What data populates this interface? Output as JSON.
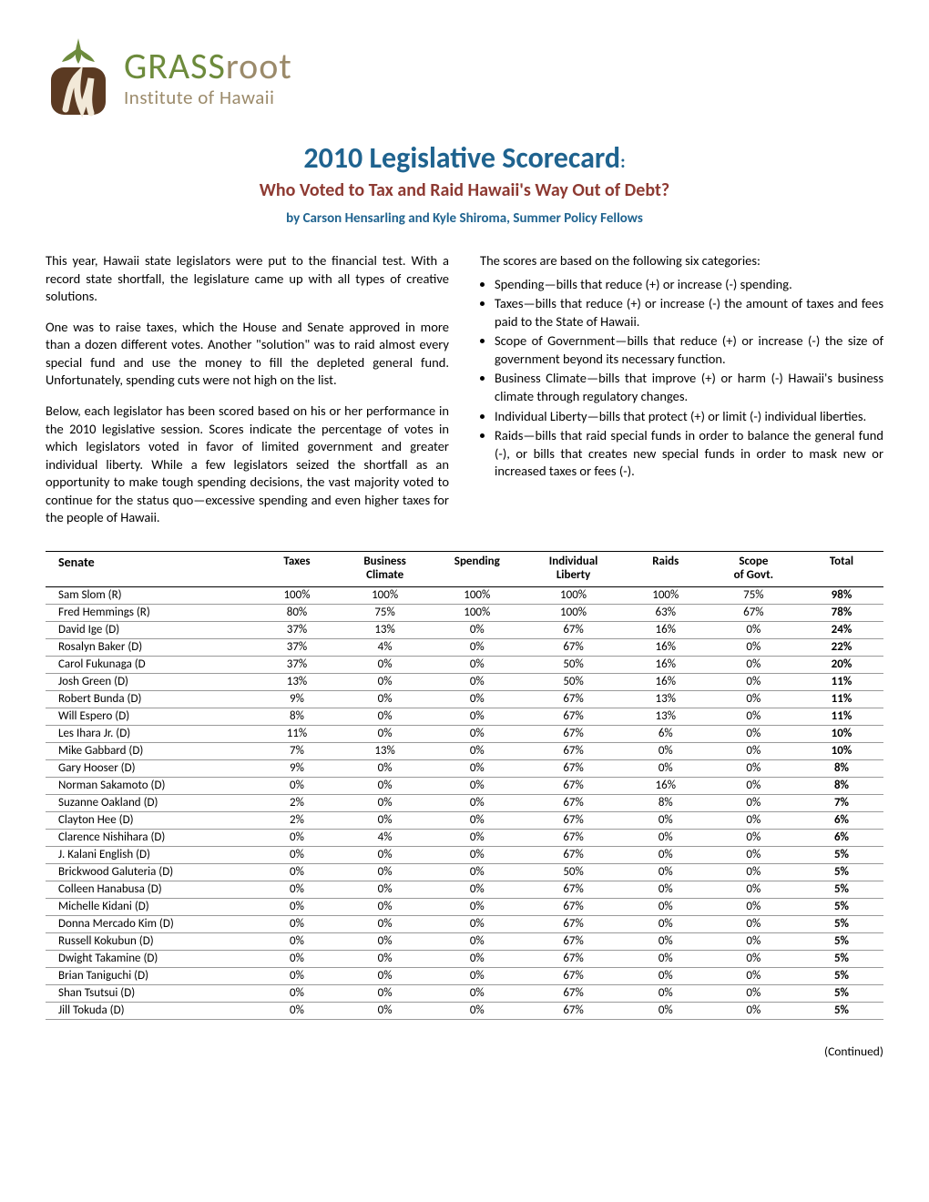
{
  "logo": {
    "line1_a": "GRASS",
    "line1_b": "root",
    "line2": "Institute of Hawaii"
  },
  "header": {
    "title": "2010 Legislative Scorecard",
    "colon": ":",
    "subtitle": "Who Voted to Tax and Raid Hawaii's Way Out of Debt?",
    "byline": "by Carson Hensarling and Kyle Shiroma, Summer Policy Fellows"
  },
  "body": {
    "p1": "This year, Hawaii state legislators were put to the financial test. With a record state shortfall, the legislature came up with all types of creative solutions.",
    "p2": "One was to raise taxes, which the House and Senate approved in more than a dozen different votes. Another \"solution\" was to raid almost every special fund and use the money to fill the depleted general fund. Unfortunately, spending cuts were not high on the list.",
    "p3": "Below, each legislator has been scored based on his or her performance in the 2010 legislative session. Scores indicate the percentage of votes in which legislators voted in favor of limited government and greater individual liberty. While a few legislators seized the shortfall as an opportunity to make tough spending decisions, the vast majority voted to continue for the status quo—excessive spending and even higher taxes for the people of Hawaii.",
    "cats_intro": "The scores are based on the following six categories:",
    "cats": [
      "Spending—bills that reduce (+) or increase (-) spending.",
      "Taxes—bills that reduce (+) or increase (-) the amount of taxes and fees paid to the State of Hawaii.",
      "Scope of Government—bills that reduce (+) or increase (-) the size of government beyond its necessary function.",
      "Business Climate—bills that improve (+) or harm (-) Hawaii's business climate through regulatory changes.",
      "Individual Liberty—bills that protect (+) or limit (-) individual liberties.",
      "Raids—bills that raid special funds in order to balance the general fund (-), or bills that creates new special funds in order to mask new or increased taxes or fees (-)."
    ]
  },
  "table": {
    "headers": {
      "c0": "Senate",
      "c1": "Taxes",
      "c2": "Business Climate",
      "c3": "Spending",
      "c4": "Individual Liberty",
      "c5": "Raids",
      "c6": "Scope of Govt.",
      "c7": "Total"
    },
    "rows": [
      {
        "name": "Sam Slom (R)",
        "taxes": "100%",
        "biz": "100%",
        "spend": "100%",
        "lib": "100%",
        "raids": "100%",
        "scope": "75%",
        "total": "98%"
      },
      {
        "name": "Fred Hemmings (R)",
        "taxes": "80%",
        "biz": "75%",
        "spend": "100%",
        "lib": "100%",
        "raids": "63%",
        "scope": "67%",
        "total": "78%"
      },
      {
        "name": "David Ige  (D)",
        "taxes": "37%",
        "biz": "13%",
        "spend": "0%",
        "lib": "67%",
        "raids": "16%",
        "scope": "0%",
        "total": "24%"
      },
      {
        "name": "Rosalyn Baker (D)",
        "taxes": "37%",
        "biz": "4%",
        "spend": "0%",
        "lib": "67%",
        "raids": "16%",
        "scope": "0%",
        "total": "22%"
      },
      {
        "name": "Carol Fukunaga (D",
        "taxes": "37%",
        "biz": "0%",
        "spend": "0%",
        "lib": "50%",
        "raids": "16%",
        "scope": "0%",
        "total": "20%"
      },
      {
        "name": "Josh Green  (D)",
        "taxes": "13%",
        "biz": "0%",
        "spend": "0%",
        "lib": "50%",
        "raids": "16%",
        "scope": "0%",
        "total": "11%"
      },
      {
        "name": "Robert Bunda   (D)",
        "taxes": "9%",
        "biz": "0%",
        "spend": "0%",
        "lib": "67%",
        "raids": "13%",
        "scope": "0%",
        "total": "11%"
      },
      {
        "name": "Will Espero  (D)",
        "taxes": "8%",
        "biz": "0%",
        "spend": "0%",
        "lib": "67%",
        "raids": "13%",
        "scope": "0%",
        "total": "11%"
      },
      {
        "name": "Les Ihara Jr.  (D)",
        "taxes": "11%",
        "biz": "0%",
        "spend": "0%",
        "lib": "67%",
        "raids": "6%",
        "scope": "0%",
        "total": "10%"
      },
      {
        "name": "Mike Gabbard  (D)",
        "taxes": "7%",
        "biz": "13%",
        "spend": "0%",
        "lib": "67%",
        "raids": "0%",
        "scope": "0%",
        "total": "10%"
      },
      {
        "name": "Gary Hooser  (D)",
        "taxes": "9%",
        "biz": "0%",
        "spend": "0%",
        "lib": "67%",
        "raids": "0%",
        "scope": "0%",
        "total": "8%"
      },
      {
        "name": "Norman Sakamoto (D)",
        "taxes": "0%",
        "biz": "0%",
        "spend": "0%",
        "lib": "67%",
        "raids": "16%",
        "scope": "0%",
        "total": "8%"
      },
      {
        "name": "Suzanne Oakland  (D)",
        "taxes": "2%",
        "biz": "0%",
        "spend": "0%",
        "lib": "67%",
        "raids": "8%",
        "scope": "0%",
        "total": "7%"
      },
      {
        "name": "Clayton Hee  (D)",
        "taxes": "2%",
        "biz": "0%",
        "spend": "0%",
        "lib": "67%",
        "raids": "0%",
        "scope": "0%",
        "total": "6%"
      },
      {
        "name": "Clarence Nishihara  (D)",
        "taxes": "0%",
        "biz": "4%",
        "spend": "0%",
        "lib": "67%",
        "raids": "0%",
        "scope": "0%",
        "total": "6%"
      },
      {
        "name": "J. Kalani English  (D)",
        "taxes": "0%",
        "biz": "0%",
        "spend": "0%",
        "lib": "67%",
        "raids": "0%",
        "scope": "0%",
        "total": "5%"
      },
      {
        "name": "Brickwood Galuteria  (D)",
        "taxes": "0%",
        "biz": "0%",
        "spend": "0%",
        "lib": "50%",
        "raids": "0%",
        "scope": "0%",
        "total": "5%"
      },
      {
        "name": "Colleen Hanabusa  (D)",
        "taxes": "0%",
        "biz": "0%",
        "spend": "0%",
        "lib": "67%",
        "raids": "0%",
        "scope": "0%",
        "total": "5%"
      },
      {
        "name": "Michelle Kidani  (D)",
        "taxes": "0%",
        "biz": "0%",
        "spend": "0%",
        "lib": "67%",
        "raids": "0%",
        "scope": "0%",
        "total": "5%"
      },
      {
        "name": "Donna Mercado Kim  (D)",
        "taxes": "0%",
        "biz": "0%",
        "spend": "0%",
        "lib": "67%",
        "raids": "0%",
        "scope": "0%",
        "total": "5%"
      },
      {
        "name": "Russell Kokubun  (D)",
        "taxes": "0%",
        "biz": "0%",
        "spend": "0%",
        "lib": "67%",
        "raids": "0%",
        "scope": "0%",
        "total": "5%"
      },
      {
        "name": "Dwight Takamine (D)",
        "taxes": "0%",
        "biz": "0%",
        "spend": "0%",
        "lib": "67%",
        "raids": "0%",
        "scope": "0%",
        "total": "5%"
      },
      {
        "name": "Brian Taniguchi  (D)",
        "taxes": "0%",
        "biz": "0%",
        "spend": "0%",
        "lib": "67%",
        "raids": "0%",
        "scope": "0%",
        "total": "5%"
      },
      {
        "name": "Shan Tsutsui  (D)",
        "taxes": "0%",
        "biz": "0%",
        "spend": "0%",
        "lib": "67%",
        "raids": "0%",
        "scope": "0%",
        "total": "5%"
      },
      {
        "name": "Jill Tokuda  (D)",
        "taxes": "0%",
        "biz": "0%",
        "spend": "0%",
        "lib": "67%",
        "raids": "0%",
        "scope": "0%",
        "total": "5%"
      }
    ]
  },
  "footer": {
    "continued": "(Continued)"
  },
  "style": {
    "title_color": "#1f638f",
    "subtitle_color": "#8e3a32",
    "logo_green": "#6d8b3c",
    "logo_tan": "#9b8a6a"
  }
}
